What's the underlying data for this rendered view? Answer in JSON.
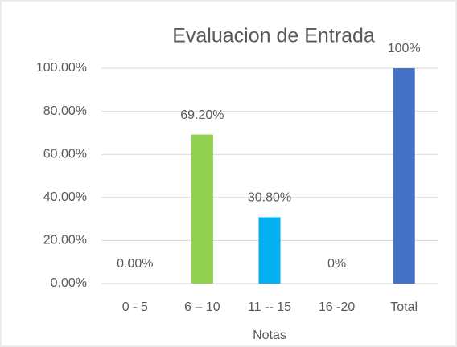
{
  "chart_data": {
    "type": "bar",
    "title": "Evaluacion de Entrada",
    "x_label": "Notas",
    "categories": [
      "0 - 5",
      "6 – 10",
      "11 -- 15",
      "16 -20",
      "Total"
    ],
    "values": [
      0,
      69.2,
      30.8,
      0,
      100
    ],
    "value_labels": [
      "0.00%",
      "69.20%",
      "30.80%",
      "0%",
      "100%"
    ],
    "colors": [
      "#92d050",
      "#92d050",
      "#00b0f0",
      "#00b0f0",
      "#4472c4"
    ],
    "ylim": [
      0,
      100
    ],
    "yticks": [
      {
        "value": 0,
        "label": "0.00%"
      },
      {
        "value": 20,
        "label": "20.00%"
      },
      {
        "value": 40,
        "label": "40.00%"
      },
      {
        "value": 60,
        "label": "60.00%"
      },
      {
        "value": 80,
        "label": "80.00%"
      },
      {
        "value": 100,
        "label": "100.00%"
      }
    ],
    "grid": true
  }
}
